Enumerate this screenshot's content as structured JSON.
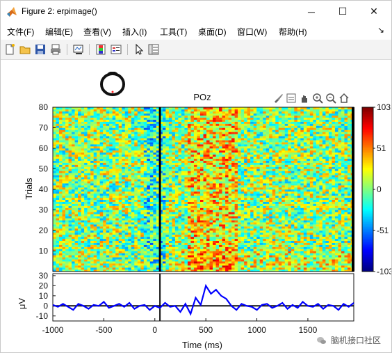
{
  "window": {
    "title": "Figure 2:  erpimage()"
  },
  "menu": {
    "items": [
      "文件(F)",
      "编辑(E)",
      "查看(V)",
      "插入(I)",
      "工具(T)",
      "桌面(D)",
      "窗口(W)",
      "帮助(H)"
    ],
    "more_glyph": "↘"
  },
  "toolbar": {
    "icons": [
      "new-figure-icon",
      "open-file-icon",
      "save-icon",
      "print-icon",
      "link-plot-icon",
      "colorbar-icon",
      "legend-icon",
      "pointer-icon",
      "property-inspector-icon"
    ]
  },
  "plot_tools": {
    "icons": [
      "brush-icon",
      "data-tips-icon",
      "pan-icon",
      "zoom-in-icon",
      "zoom-out-icon",
      "home-icon"
    ]
  },
  "watermark": {
    "text": "脑机接口社区",
    "icon": "wechat-icon"
  },
  "chart_data": [
    {
      "type": "heatmap",
      "title": "POz",
      "ylabel": "Trials",
      "xlim": [
        -1000,
        1950
      ],
      "ylim": [
        0,
        80
      ],
      "yticks": [
        10,
        20,
        30,
        40,
        50,
        60,
        70,
        80
      ],
      "x_event_marker": 50,
      "colorbar": {
        "ticks": [
          103,
          51,
          0,
          -51,
          -103
        ],
        "colormap": "jet"
      },
      "description_only_rendered": true
    },
    {
      "type": "line",
      "ylabel": "μV",
      "xlabel": "Time (ms)",
      "xlim": [
        -1000,
        1950
      ],
      "ylim": [
        -15,
        32
      ],
      "yticks": [
        30,
        20,
        10,
        0,
        -10
      ],
      "xticks": [
        -1000,
        -500,
        0,
        500,
        1000,
        1500
      ],
      "x": [
        -1000,
        -950,
        -900,
        -850,
        -800,
        -750,
        -700,
        -650,
        -600,
        -550,
        -500,
        -450,
        -400,
        -350,
        -300,
        -250,
        -200,
        -150,
        -100,
        -50,
        0,
        50,
        100,
        150,
        200,
        250,
        300,
        350,
        400,
        450,
        500,
        550,
        600,
        650,
        700,
        750,
        800,
        850,
        900,
        950,
        1000,
        1050,
        1100,
        1150,
        1200,
        1250,
        1300,
        1350,
        1400,
        1450,
        1500,
        1550,
        1600,
        1650,
        1700,
        1750,
        1800,
        1850,
        1900,
        1950
      ],
      "y": [
        1,
        -1,
        2,
        -1,
        -4,
        2,
        0,
        -3,
        1,
        0,
        4,
        -2,
        0,
        2,
        -1,
        3,
        -3,
        0,
        1,
        -4,
        0,
        -2,
        3,
        -1,
        0,
        -6,
        2,
        -8,
        8,
        1,
        20,
        12,
        16,
        10,
        7,
        0,
        -4,
        2,
        0,
        -1,
        -4,
        1,
        2,
        -2,
        0,
        3,
        -3,
        1,
        -2,
        4,
        0,
        -1,
        2,
        -3,
        1,
        0,
        -4,
        2,
        -1,
        3
      ],
      "series_color": "#0000ff"
    }
  ]
}
